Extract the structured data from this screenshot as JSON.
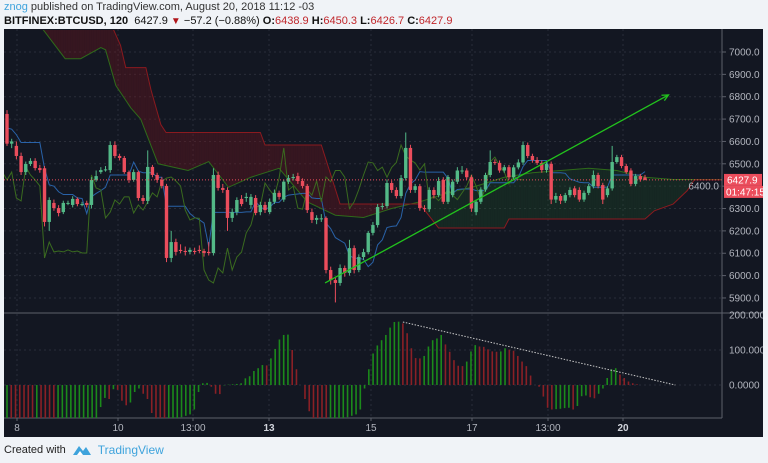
{
  "header": {
    "author": "znog",
    "published_text": "published on TradingView.com, August 20, 2018 11:12 -03",
    "symbol": "BITFINEX:BTCUSD, 120",
    "last": "6427.9",
    "change": "−57.2 (−0.88%)",
    "o_label": "O:",
    "o": "6438.9",
    "h_label": "H:",
    "h": "6450.3",
    "l_label": "L:",
    "l": "6426.7",
    "c_label": "C:",
    "c": "6427.9"
  },
  "footer": {
    "created_with": "Created with",
    "brand": "TradingView"
  },
  "colors": {
    "background": "#131722",
    "up": "#53b987",
    "down": "#eb4d5c",
    "hist_up": "#1b8a1b",
    "hist_down": "#8a2026",
    "tenkan": "#2962a8",
    "chikou": "#3a6b1f",
    "span_a": "#2f6b1a",
    "span_b": "#8b1a1f",
    "cloud_bear": "rgba(120,20,28,0.35)",
    "cloud_bull": "rgba(30,90,40,0.25)",
    "trendline": "#22c21d",
    "price_label": "#eb4d5c"
  },
  "chart_data": [
    {
      "type": "candlestick",
      "ylim": [
        5850,
        7100
      ],
      "y_ticks": [
        "7000.0",
        "6900.0",
        "6800.0",
        "6700.0",
        "6600.0",
        "6500.0",
        "6400.0",
        "6300.0",
        "6200.0",
        "6100.0",
        "6000.0",
        "5900.0"
      ],
      "x_ticks": [
        "8",
        "10",
        "13:00",
        "13",
        "15",
        "17",
        "13:00",
        "20"
      ],
      "last_price_label": "6427.9",
      "countdown_label": "01:47:15",
      "grid": true,
      "ohlc": [
        [
          6723,
          6740,
          6580,
          6590
        ],
        [
          6590,
          6612,
          6570,
          6600
        ],
        [
          6580,
          6600,
          6520,
          6535
        ],
        [
          6535,
          6550,
          6450,
          6463
        ],
        [
          6463,
          6510,
          6450,
          6499
        ],
        [
          6499,
          6525,
          6490,
          6513
        ],
        [
          6513,
          6525,
          6470,
          6481
        ],
        [
          6481,
          6495,
          6460,
          6472
        ],
        [
          6480,
          6490,
          6220,
          6240
        ],
        [
          6240,
          6350,
          6200,
          6338
        ],
        [
          6325,
          6340,
          6290,
          6302
        ],
        [
          6302,
          6315,
          6265,
          6280
        ],
        [
          6284,
          6335,
          6275,
          6325
        ],
        [
          6325,
          6335,
          6315,
          6325
        ],
        [
          6316,
          6355,
          6305,
          6343
        ],
        [
          6343,
          6350,
          6310,
          6320
        ],
        [
          6320,
          6330,
          6310,
          6320
        ],
        [
          6325,
          6335,
          6305,
          6316
        ],
        [
          6316,
          6440,
          6300,
          6428
        ],
        [
          6428,
          6470,
          6420,
          6445
        ],
        [
          6463,
          6485,
          6455,
          6472
        ],
        [
          6472,
          6490,
          6465,
          6475
        ],
        [
          6472,
          6600,
          6460,
          6584
        ],
        [
          6584,
          6600,
          6525,
          6535
        ],
        [
          6535,
          6545,
          6515,
          6526
        ],
        [
          6526,
          6535,
          6455,
          6463
        ],
        [
          6463,
          6470,
          6415,
          6428
        ],
        [
          6428,
          6475,
          6420,
          6463
        ],
        [
          6463,
          6470,
          6335,
          6347
        ],
        [
          6347,
          6360,
          6320,
          6334
        ],
        [
          6334,
          6560,
          6320,
          6486
        ],
        [
          6486,
          6495,
          6440,
          6450
        ],
        [
          6450,
          6460,
          6415,
          6428
        ],
        [
          6428,
          6440,
          6390,
          6401
        ],
        [
          6401,
          6410,
          6060,
          6079
        ],
        [
          6079,
          6200,
          6060,
          6150
        ],
        [
          6150,
          6165,
          6090,
          6106
        ],
        [
          6115,
          6140,
          6100,
          6110
        ],
        [
          6110,
          6130,
          6090,
          6106
        ],
        [
          6106,
          6125,
          6095,
          6115
        ],
        [
          6110,
          6125,
          6095,
          6106
        ],
        [
          6115,
          6135,
          6100,
          6110
        ],
        [
          6110,
          6120,
          6085,
          6101
        ],
        [
          6106,
          6150,
          6090,
          6101
        ],
        [
          6101,
          6480,
          6090,
          6450
        ],
        [
          6450,
          6465,
          6380,
          6392
        ],
        [
          6392,
          6410,
          6370,
          6383
        ],
        [
          6383,
          6395,
          6200,
          6258
        ],
        [
          6258,
          6300,
          6240,
          6284
        ],
        [
          6284,
          6350,
          6270,
          6338
        ],
        [
          6343,
          6360,
          6310,
          6320
        ],
        [
          6347,
          6370,
          6330,
          6352
        ],
        [
          6316,
          6365,
          6300,
          6352
        ],
        [
          6347,
          6360,
          6270,
          6280
        ],
        [
          6284,
          6330,
          6270,
          6316
        ],
        [
          6316,
          6330,
          6280,
          6293
        ],
        [
          6284,
          6345,
          6275,
          6330
        ],
        [
          6330,
          6385,
          6320,
          6370
        ],
        [
          6370,
          6380,
          6340,
          6352
        ],
        [
          6340,
          6430,
          6330,
          6420
        ],
        [
          6420,
          6450,
          6410,
          6436
        ],
        [
          6436,
          6455,
          6425,
          6441
        ],
        [
          6445,
          6460,
          6410,
          6423
        ],
        [
          6423,
          6435,
          6390,
          6401
        ],
        [
          6401,
          6410,
          6280,
          6293
        ],
        [
          6284,
          6300,
          6235,
          6249
        ],
        [
          6249,
          6270,
          6230,
          6258
        ],
        [
          6256,
          6275,
          6240,
          6256
        ],
        [
          6258,
          6265,
          6010,
          6025
        ],
        [
          6025,
          6040,
          5960,
          5980
        ],
        [
          5980,
          5995,
          5880,
          5967
        ],
        [
          5967,
          6050,
          5955,
          6034
        ],
        [
          6034,
          6045,
          5995,
          6012
        ],
        [
          6012,
          6160,
          6000,
          6123
        ],
        [
          6123,
          6135,
          6010,
          6025
        ],
        [
          6025,
          6095,
          6015,
          6083
        ],
        [
          6083,
          6120,
          6070,
          6105
        ],
        [
          6105,
          6200,
          6095,
          6191
        ],
        [
          6191,
          6240,
          6180,
          6226
        ],
        [
          6226,
          6320,
          6215,
          6307
        ],
        [
          6307,
          6325,
          6295,
          6311
        ],
        [
          6311,
          6430,
          6300,
          6414
        ],
        [
          6414,
          6425,
          6370,
          6383
        ],
        [
          6383,
          6395,
          6345,
          6356
        ],
        [
          6356,
          6450,
          6345,
          6436
        ],
        [
          6436,
          6640,
          6425,
          6571
        ],
        [
          6571,
          6585,
          6370,
          6383
        ],
        [
          6383,
          6410,
          6370,
          6400
        ],
        [
          6400,
          6410,
          6290,
          6302
        ],
        [
          6302,
          6315,
          6285,
          6297
        ],
        [
          6297,
          6395,
          6285,
          6383
        ],
        [
          6383,
          6395,
          6345,
          6360
        ],
        [
          6360,
          6440,
          6350,
          6423
        ],
        [
          6428,
          6440,
          6320,
          6330
        ],
        [
          6330,
          6450,
          6320,
          6441
        ],
        [
          6360,
          6430,
          6350,
          6420
        ],
        [
          6420,
          6485,
          6410,
          6470
        ],
        [
          6470,
          6490,
          6455,
          6470
        ],
        [
          6470,
          6480,
          6430,
          6440
        ],
        [
          6440,
          6450,
          6285,
          6300
        ],
        [
          6284,
          6340,
          6270,
          6330
        ],
        [
          6330,
          6395,
          6320,
          6385
        ],
        [
          6385,
          6460,
          6375,
          6450
        ],
        [
          6450,
          6560,
          6440,
          6508
        ],
        [
          6508,
          6520,
          6495,
          6504
        ],
        [
          6504,
          6515,
          6460,
          6470
        ],
        [
          6470,
          6495,
          6460,
          6485
        ],
        [
          6485,
          6495,
          6430,
          6440
        ],
        [
          6440,
          6495,
          6430,
          6484
        ],
        [
          6484,
          6520,
          6475,
          6506
        ],
        [
          6506,
          6600,
          6495,
          6584
        ],
        [
          6584,
          6595,
          6525,
          6535
        ],
        [
          6535,
          6545,
          6505,
          6517
        ],
        [
          6517,
          6530,
          6495,
          6504
        ],
        [
          6504,
          6515,
          6460,
          6472
        ],
        [
          6472,
          6510,
          6460,
          6500
        ],
        [
          6500,
          6510,
          6320,
          6340
        ],
        [
          6340,
          6370,
          6325,
          6356
        ],
        [
          6356,
          6365,
          6320,
          6335
        ],
        [
          6335,
          6370,
          6325,
          6360
        ],
        [
          6360,
          6395,
          6350,
          6383
        ],
        [
          6390,
          6400,
          6350,
          6360
        ],
        [
          6383,
          6395,
          6330,
          6340
        ],
        [
          6340,
          6380,
          6330,
          6370
        ],
        [
          6370,
          6410,
          6360,
          6400
        ],
        [
          6400,
          6470,
          6390,
          6450
        ],
        [
          6450,
          6460,
          6390,
          6400
        ],
        [
          6405,
          6415,
          6320,
          6340
        ],
        [
          6360,
          6400,
          6350,
          6390
        ],
        [
          6390,
          6580,
          6380,
          6508
        ],
        [
          6508,
          6540,
          6500,
          6530
        ],
        [
          6530,
          6540,
          6480,
          6490
        ],
        [
          6490,
          6500,
          6455,
          6463
        ],
        [
          6470,
          6480,
          6400,
          6410
        ],
        [
          6410,
          6455,
          6400,
          6445
        ],
        [
          6445,
          6455,
          6420,
          6430
        ],
        [
          6438.9,
          6450.3,
          6426.7,
          6427.9
        ]
      ],
      "ichimoku": {
        "span_a": [
          [
            0,
            7300
          ],
          [
            7.7,
            7100
          ],
          [
            12.4,
            6970
          ],
          [
            15.7,
            6970
          ],
          [
            20,
            7020
          ],
          [
            21,
            7010
          ],
          [
            23.2,
            6850
          ],
          [
            26.4,
            6750
          ],
          [
            28.5,
            6700
          ],
          [
            32.2,
            6500
          ],
          [
            38.6,
            6470
          ],
          [
            43,
            6510
          ],
          [
            47.2,
            6395
          ],
          [
            52,
            6440
          ],
          [
            58,
            6480
          ],
          [
            64,
            6330
          ],
          [
            70,
            6270
          ],
          [
            76,
            6260
          ],
          [
            82,
            6300
          ],
          [
            88,
            6330
          ],
          [
            94,
            6370
          ],
          [
            100,
            6400
          ],
          [
            106,
            6440
          ],
          [
            112,
            6460
          ],
          [
            118,
            6470
          ],
          [
            124,
            6480
          ],
          [
            130,
            6470
          ],
          [
            136,
            6440
          ],
          [
            142,
            6430
          ],
          [
            153,
            6430
          ]
        ],
        "span_b": [
          [
            0,
            7300
          ],
          [
            22,
            7300
          ],
          [
            22.7,
            7100
          ],
          [
            24.2,
            7030
          ],
          [
            25.3,
            6930
          ],
          [
            29.6,
            6930
          ],
          [
            30.7,
            6830
          ],
          [
            32.8,
            6675
          ],
          [
            33.9,
            6640
          ],
          [
            54,
            6640
          ],
          [
            55,
            6584
          ],
          [
            67,
            6584
          ],
          [
            71,
            6320
          ],
          [
            88,
            6320
          ],
          [
            92,
            6213
          ],
          [
            106,
            6213
          ],
          [
            107,
            6253
          ],
          [
            136,
            6253
          ],
          [
            138,
            6290
          ],
          [
            142,
            6320
          ],
          [
            145,
            6380
          ],
          [
            146.5,
            6428
          ],
          [
            153,
            6428
          ]
        ]
      },
      "drawings": {
        "trendline": {
          "from": [
            67.8,
            5967
          ],
          "to": [
            141.0,
            6808
          ],
          "arrow": true
        }
      }
    },
    {
      "type": "bar",
      "ylim": [
        -95,
        205
      ],
      "y_ticks": [
        "200.0000",
        "100.0000",
        "0.0000"
      ],
      "values": [
        -100,
        -104,
        -108,
        -112,
        -116,
        -120,
        -124,
        -118,
        -122,
        -126,
        -130,
        -134,
        -130,
        -126,
        -122,
        -118,
        -114,
        -110,
        -106,
        -102,
        -98,
        -96,
        -63,
        -37,
        -40,
        -12,
        -14,
        -45,
        -58,
        -50,
        -20,
        -10,
        -25,
        -40,
        -80,
        -100,
        -105,
        -110,
        -105,
        -100,
        -96,
        -92,
        -88,
        -84,
        -70,
        -20,
        5,
        6,
        -5,
        -25,
        -26,
        -1,
        1,
        2,
        3,
        5,
        19,
        25,
        40,
        48,
        57,
        56,
        76,
        103,
        130,
        143,
        144,
        100,
        45,
        0,
        -40,
        -75,
        -100,
        -104,
        -108,
        -112,
        -108,
        -104,
        -100,
        -96,
        -92,
        -88,
        -84,
        -70,
        -10,
        45,
        90,
        113,
        128,
        143,
        164,
        180,
        181,
        176,
        148,
        105,
        77,
        76,
        83,
        110,
        128,
        133,
        143,
        116,
        95,
        71,
        55,
        54,
        67,
        96,
        114,
        110,
        109,
        102,
        96,
        95,
        96,
        105,
        101,
        98,
        83,
        67,
        54,
        27,
        0,
        -5,
        -33,
        -65,
        -70,
        -69,
        -68,
        -66,
        -65,
        -70,
        -60,
        -32,
        -30,
        -35,
        -38,
        -25,
        -10,
        20,
        45,
        48,
        30,
        20,
        10,
        5,
        2
      ],
      "trendline": {
        "from": [
          93,
          180
        ],
        "to": [
          157,
          0
        ],
        "style": "dotted"
      }
    }
  ]
}
